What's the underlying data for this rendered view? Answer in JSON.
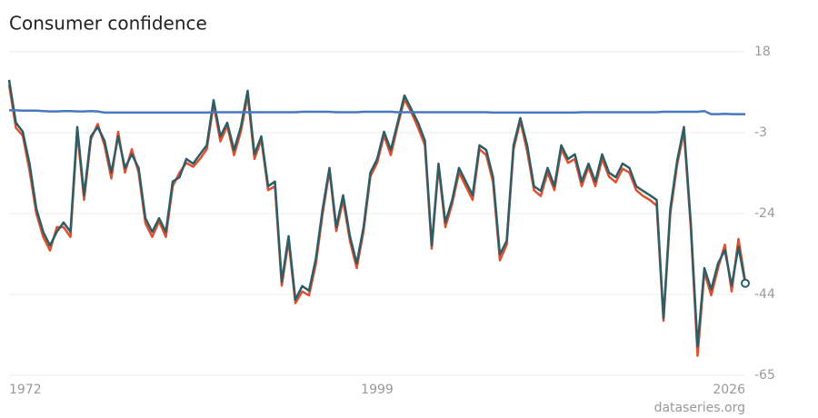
{
  "chart_data": {
    "type": "line",
    "title": "Consumer confidence",
    "source": "dataseries.org",
    "x": [
      1972,
      1972.5,
      1973,
      1973.5,
      1974,
      1974.5,
      1975,
      1975.5,
      1976,
      1976.5,
      1977,
      1977.5,
      1978,
      1978.5,
      1979,
      1979.5,
      1980,
      1980.5,
      1981,
      1981.5,
      1982,
      1982.5,
      1983,
      1983.5,
      1984,
      1984.5,
      1985,
      1985.5,
      1986,
      1986.5,
      1987,
      1987.5,
      1988,
      1988.5,
      1989,
      1989.5,
      1990,
      1990.5,
      1991,
      1991.5,
      1992,
      1992.5,
      1993,
      1993.5,
      1994,
      1994.5,
      1995,
      1995.5,
      1996,
      1996.5,
      1997,
      1997.5,
      1998,
      1998.5,
      1999,
      1999.5,
      2000,
      2000.5,
      2001,
      2001.5,
      2002,
      2002.5,
      2003,
      2003.5,
      2004,
      2004.5,
      2005,
      2005.5,
      2006,
      2006.5,
      2007,
      2007.5,
      2008,
      2008.5,
      2009,
      2009.5,
      2010,
      2010.5,
      2011,
      2011.5,
      2012,
      2012.5,
      2013,
      2013.5,
      2014,
      2014.5,
      2015,
      2015.5,
      2016,
      2016.5,
      2017,
      2017.5,
      2018,
      2018.5,
      2019,
      2019.5,
      2020,
      2020.5,
      2021,
      2021.5,
      2022,
      2022.5,
      2023,
      2023.5,
      2024,
      2024.5,
      2025,
      2025.5,
      2026
    ],
    "series": [
      {
        "color": "#e0502f",
        "values": [
          9.5,
          -1.5,
          -3.5,
          -12.5,
          -23.5,
          -29.5,
          -33,
          -27,
          -27,
          -29.5,
          -2.5,
          -20,
          -4.5,
          -0.5,
          -6,
          -14.5,
          -2.5,
          -13,
          -7,
          -13,
          -26,
          -29.5,
          -25.5,
          -29.5,
          -16.5,
          -13,
          -10.5,
          -11.5,
          -9.5,
          -7,
          4.5,
          -5,
          -1,
          -8.5,
          -2.5,
          6.8,
          -9.5,
          -4.5,
          -17.5,
          -16.5,
          -42,
          -30.5,
          -46.5,
          -43.5,
          -44.5,
          -36.5,
          -23.5,
          -12.5,
          -28,
          -20,
          -30.5,
          -37.5,
          -28,
          -14,
          -10.5,
          -3.5,
          -8.5,
          -1,
          5.8,
          2.5,
          -1.5,
          -6,
          -32.5,
          -11.5,
          -27,
          -21,
          -13,
          -16.5,
          -20,
          -7,
          -8.5,
          -15.5,
          -35.5,
          -31.5,
          -7,
          0.2,
          -7.5,
          -17.5,
          -19,
          -13,
          -17.5,
          -7,
          -10.5,
          -9.5,
          -16.5,
          -11.5,
          -16.5,
          -9.5,
          -14,
          -15.5,
          -12,
          -13,
          -17.5,
          -19,
          -20,
          -21.5,
          -51,
          -23.5,
          -11,
          -2.5,
          -27,
          -60,
          -38.5,
          -44.5,
          -37.5,
          -31.5,
          -43.5,
          -30,
          -41
        ]
      },
      {
        "color": "#2f5d66",
        "values": [
          10.8,
          -0.2,
          -2.5,
          -10.7,
          -22.3,
          -28.2,
          -31.7,
          -28.2,
          -25.8,
          -28.2,
          -1.3,
          -18.8,
          -3.7,
          -1.3,
          -4.8,
          -13,
          -3.7,
          -11.8,
          -8.3,
          -11.8,
          -24.7,
          -28.2,
          -24.7,
          -28.2,
          -15.3,
          -14.2,
          -9.5,
          -10.7,
          -8.3,
          -6,
          5.6,
          -3.7,
          -0.2,
          -7.2,
          -1.3,
          8,
          -8.3,
          -3.7,
          -16.5,
          -15.3,
          -41,
          -29.3,
          -45.6,
          -42.1,
          -43.3,
          -35.1,
          -22.3,
          -11.8,
          -27,
          -18.8,
          -29.3,
          -36.3,
          -27,
          -13,
          -9.5,
          -2.5,
          -7.2,
          -0.2,
          6.8,
          3.3,
          -0.2,
          -4.8,
          -31.7,
          -10.7,
          -25.8,
          -20,
          -11.8,
          -15.3,
          -18.8,
          -6,
          -7.2,
          -14.2,
          -34,
          -30.5,
          -6,
          1,
          -6,
          -16.5,
          -17.7,
          -11.8,
          -16.5,
          -6,
          -9.5,
          -8.3,
          -15.3,
          -10.7,
          -15.3,
          -8.3,
          -13,
          -14.2,
          -10.7,
          -11.8,
          -16.5,
          -17.7,
          -18.8,
          -20,
          -50.3,
          -22.3,
          -10,
          -1.3,
          -25.8,
          -57.6,
          -37.5,
          -43,
          -36.3,
          -32.9,
          -42,
          -32,
          -41.4
        ]
      },
      {
        "color": "#4a78c0",
        "values": [
          3.0,
          3.0,
          2.9,
          2.9,
          2.9,
          2.8,
          2.7,
          2.7,
          2.8,
          2.8,
          2.7,
          2.7,
          2.8,
          2.7,
          2.4,
          2.4,
          2.4,
          2.4,
          2.4,
          2.4,
          2.4,
          2.4,
          2.4,
          2.4,
          2.4,
          2.4,
          2.4,
          2.4,
          2.4,
          2.4,
          2.5,
          2.5,
          2.5,
          2.5,
          2.5,
          2.5,
          2.5,
          2.5,
          2.5,
          2.5,
          2.5,
          2.5,
          2.5,
          2.6,
          2.6,
          2.6,
          2.6,
          2.6,
          2.5,
          2.5,
          2.5,
          2.5,
          2.6,
          2.6,
          2.6,
          2.6,
          2.6,
          2.5,
          2.5,
          2.5,
          2.5,
          2.5,
          2.5,
          2.5,
          2.5,
          2.5,
          2.5,
          2.5,
          2.5,
          2.5,
          2.5,
          2.4,
          2.4,
          2.4,
          2.4,
          2.4,
          2.4,
          2.4,
          2.4,
          2.4,
          2.4,
          2.4,
          2.4,
          2.4,
          2.5,
          2.5,
          2.5,
          2.5,
          2.5,
          2.5,
          2.5,
          2.5,
          2.5,
          2.5,
          2.5,
          2.5,
          2.6,
          2.6,
          2.6,
          2.6,
          2.6,
          2.6,
          2.8,
          2.0,
          2.0,
          2.1,
          2.0,
          2.0,
          2.0
        ]
      }
    ],
    "xlim": [
      1972,
      2026
    ],
    "xticks": [
      1972,
      1999,
      2026
    ],
    "ylim": [
      -65,
      18
    ],
    "yticks": [
      18,
      {
        "value": -2.75,
        "label": "-3"
      },
      {
        "value": -23.5,
        "label": "-24"
      },
      {
        "value": -44.25,
        "label": "-44"
      },
      -65
    ],
    "grid": true
  }
}
